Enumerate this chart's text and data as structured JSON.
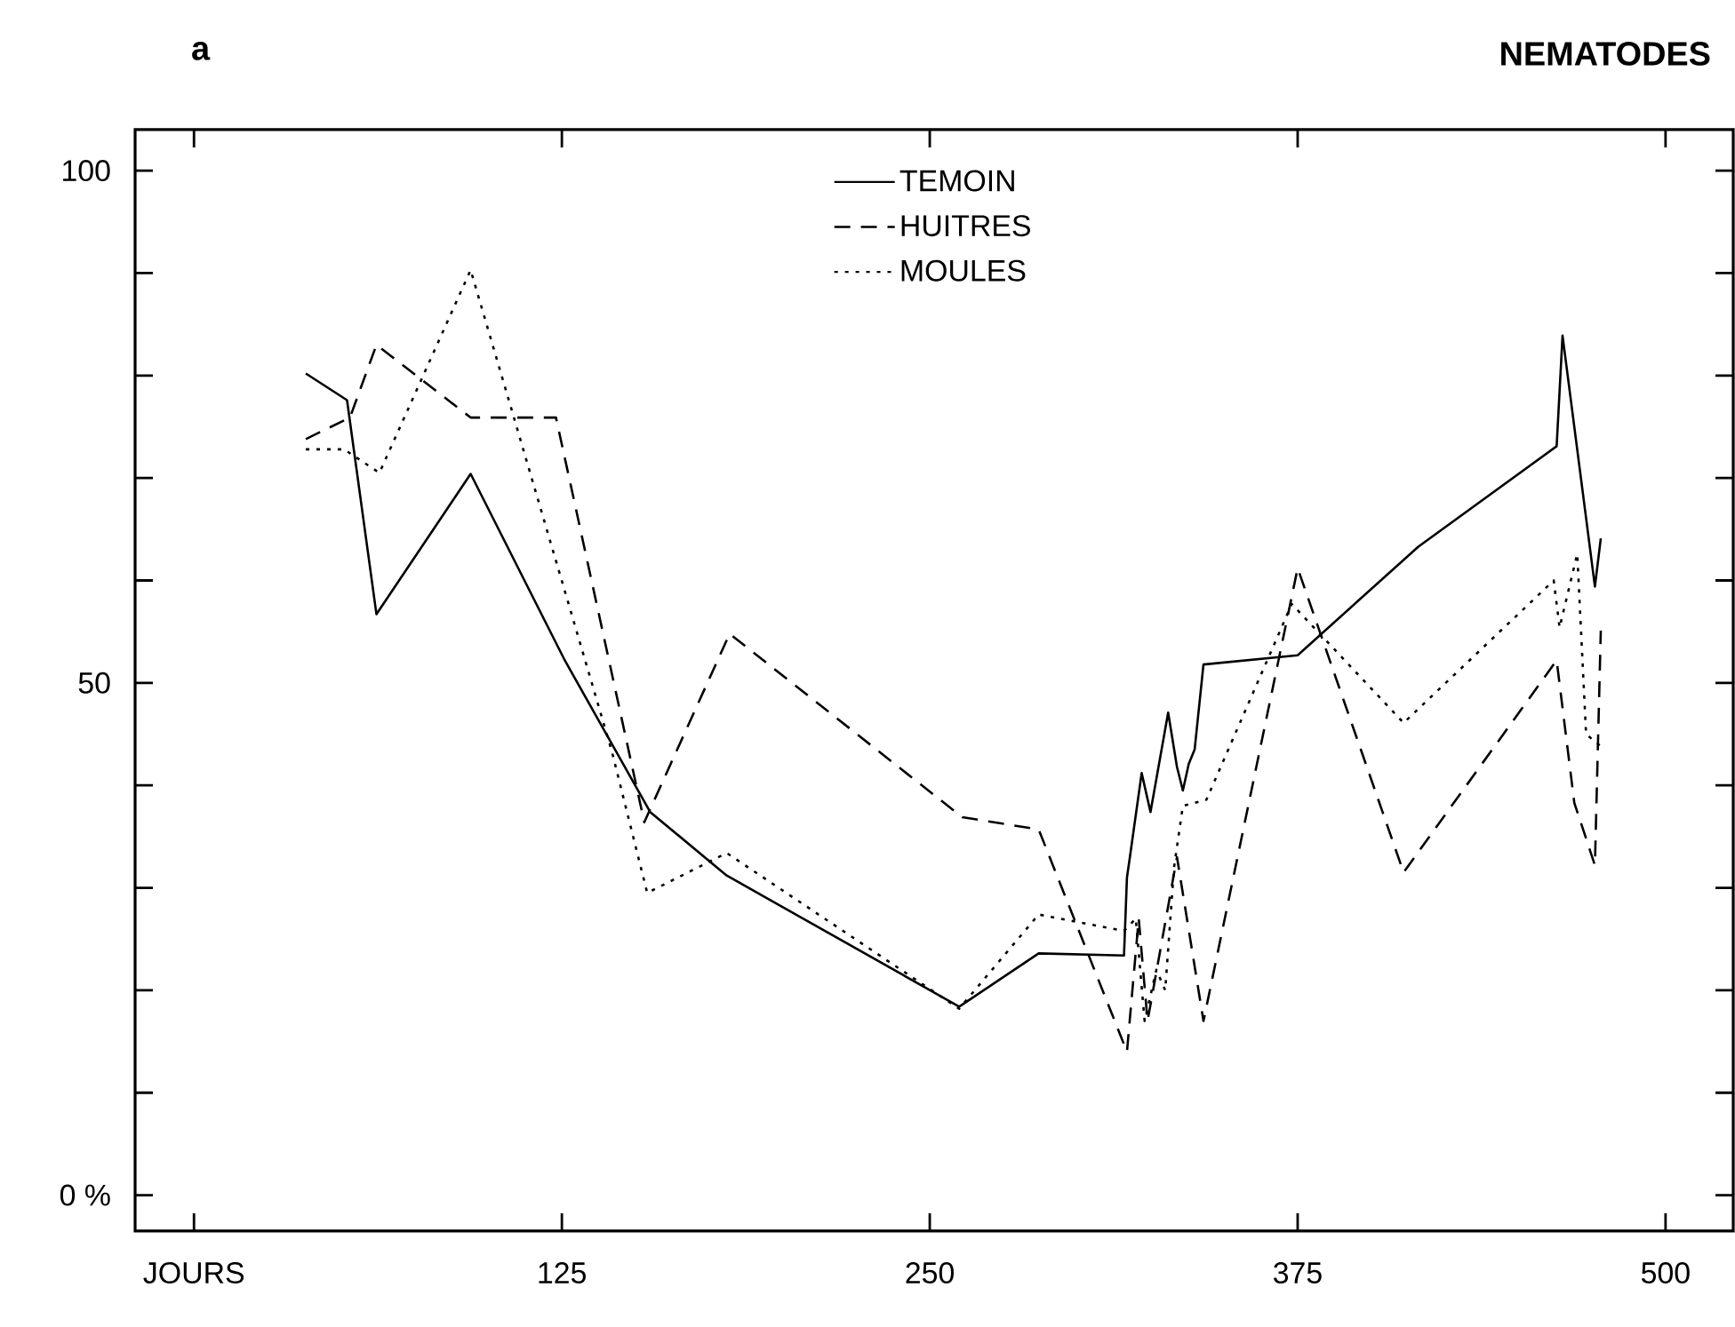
{
  "chart_data": {
    "type": "line",
    "title": "NEMATODES",
    "annotations": [
      "a"
    ],
    "xlim": [
      -20,
      523
    ],
    "ylim": [
      -3.5,
      104
    ],
    "xticks": [
      {
        "value": 0,
        "label": "JOURS"
      },
      125,
      250,
      375,
      500
    ],
    "yticks": [
      {
        "value": 0,
        "label": "0 %"
      },
      {
        "value": 10,
        "label": null
      },
      {
        "value": 20,
        "label": null
      },
      {
        "value": 30,
        "label": null
      },
      {
        "value": 40,
        "label": null
      },
      50,
      {
        "value": 60,
        "label": null
      },
      {
        "value": 70,
        "label": null
      },
      {
        "value": 80,
        "label": null
      },
      {
        "value": 90,
        "label": null
      },
      100
    ],
    "grid": false,
    "legend": "top",
    "marker": "none",
    "series": [
      {
        "name": "TEMOIN",
        "color": "#000000",
        "line_style": "solid",
        "x": [
          38,
          52,
          62,
          94,
          126,
          155,
          181,
          260,
          287,
          316,
          317,
          318,
          322,
          325,
          331,
          334,
          336,
          338,
          340,
          343,
          375,
          416,
          463,
          465,
          476,
          478
        ],
        "values": [
          80.2,
          77.6,
          56.7,
          70.4,
          52.2,
          37.4,
          31.2,
          18.4,
          23.6,
          23.4,
          31,
          33,
          41.2,
          37.4,
          47.1,
          41.8,
          39.5,
          42.1,
          43.5,
          51.8,
          52.7,
          63.3,
          73.1,
          83.9,
          59.4,
          64.1
        ]
      },
      {
        "name": "HUITRES",
        "color": "#000000",
        "line_style": "dashed",
        "x": [
          38,
          53,
          62,
          94,
          123,
          153,
          182,
          261,
          287,
          317,
          321,
          324,
          334,
          343,
          375,
          411,
          463,
          469,
          476,
          478
        ],
        "values": [
          73.8,
          75.9,
          83.0,
          75.9,
          75.9,
          36.4,
          54.8,
          36.9,
          35.7,
          14.0,
          27,
          17,
          33,
          17,
          61.2,
          31.5,
          52.2,
          38.3,
          32.2,
          55.1
        ]
      },
      {
        "name": "MOULES",
        "color": "#000000",
        "line_style": "dotted",
        "x": [
          38,
          51,
          63,
          94,
          142,
          154,
          181,
          260,
          287,
          316,
          320,
          323,
          327,
          330,
          333,
          336,
          340,
          344,
          373,
          411,
          462,
          464,
          470,
          473,
          478
        ],
        "values": [
          72.8,
          72.8,
          70.5,
          90.3,
          43.3,
          29.5,
          33.4,
          18.2,
          27.4,
          25.8,
          27,
          17,
          22,
          20,
          32,
          38,
          38.3,
          38.6,
          57.7,
          46.1,
          60.0,
          55.4,
          62.6,
          45.0,
          43.8
        ]
      }
    ]
  }
}
